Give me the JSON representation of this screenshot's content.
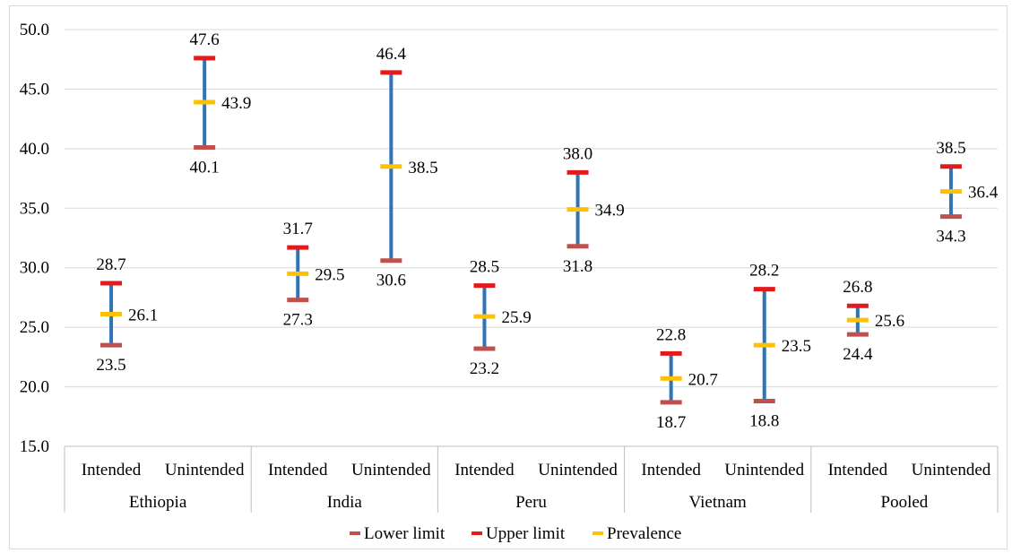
{
  "chart_data": {
    "type": "stock",
    "ylim": [
      15.0,
      50.0
    ],
    "y_ticks": [
      "15.0",
      "20.0",
      "25.0",
      "30.0",
      "35.0",
      "40.0",
      "45.0",
      "50.0"
    ],
    "grid": "horizontal",
    "legend_position": "bottom",
    "groups": [
      "Ethiopia",
      "India",
      "Peru",
      "Vietnam",
      "Pooled"
    ],
    "subcategories": [
      "Intended",
      "Unintended"
    ],
    "colors": {
      "whisker": "#2e75b6",
      "lower": "#c0504d",
      "upper": "#e31a1c",
      "prevalence": "#ffc000",
      "grid": "#d9d9d9",
      "axis": "#bfbfbf"
    },
    "series": [
      {
        "name": "Lower limit",
        "values": [
          23.5,
          40.1,
          27.3,
          30.6,
          23.2,
          31.8,
          18.7,
          18.8,
          24.4,
          34.3
        ]
      },
      {
        "name": "Upper limit",
        "values": [
          28.7,
          47.6,
          31.7,
          46.4,
          28.5,
          38.0,
          22.8,
          28.2,
          26.8,
          38.5
        ]
      },
      {
        "name": "Prevalence",
        "values": [
          26.1,
          43.9,
          29.5,
          38.5,
          25.9,
          34.9,
          20.7,
          23.5,
          25.6,
          36.4
        ]
      }
    ],
    "data_labels": {
      "lower": [
        "23.5",
        "40.1",
        "27.3",
        "30.6",
        "23.2",
        "31.8",
        "18.7",
        "18.8",
        "24.4",
        "34.3"
      ],
      "upper": [
        "28.7",
        "47.6",
        "31.7",
        "46.4",
        "28.5",
        "38.0",
        "22.8",
        "28.2",
        "26.8",
        "38.5"
      ],
      "prevalence": [
        "26.1",
        "43.9",
        "29.5",
        "38.5",
        "25.9",
        "34.9",
        "20.7",
        "23.5",
        "25.6",
        "36.4"
      ]
    }
  }
}
